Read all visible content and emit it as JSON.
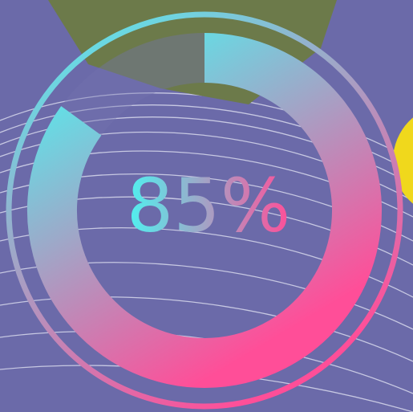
{
  "chart_data": {
    "type": "gauge",
    "values": [
      85
    ],
    "value_labels": [
      "85%"
    ],
    "ylim": [
      0,
      100
    ],
    "colors": [
      "#4ef2f0",
      "#ff4e98"
    ]
  }
}
